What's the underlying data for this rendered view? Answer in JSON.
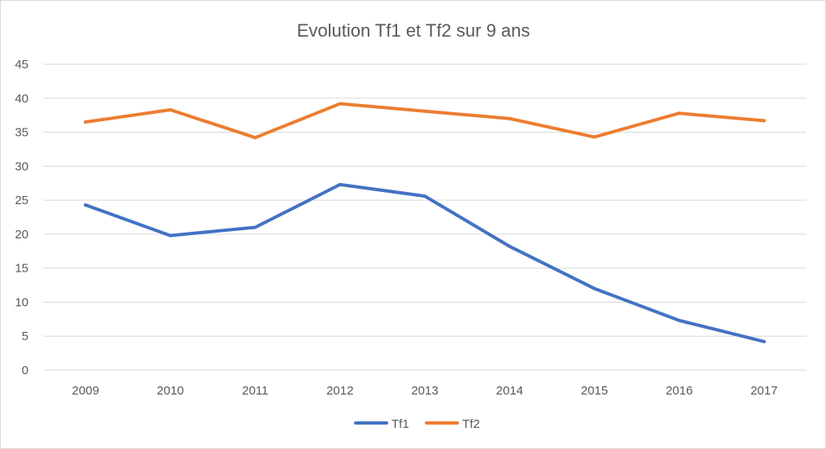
{
  "chart_data": {
    "type": "line",
    "title": "Evolution Tf1 et Tf2 sur 9 ans",
    "xlabel": "",
    "ylabel": "",
    "categories": [
      "2009",
      "2010",
      "2011",
      "2012",
      "2013",
      "2014",
      "2015",
      "2016",
      "2017"
    ],
    "ylim": [
      0,
      45
    ],
    "yticks": [
      "0",
      "5",
      "10",
      "15",
      "20",
      "25",
      "30",
      "35",
      "40",
      "45"
    ],
    "grid": true,
    "legend": "bottom",
    "series": [
      {
        "name": "Tf1",
        "color": "#4472C4",
        "values": [
          24.3,
          19.8,
          21.0,
          27.3,
          25.6,
          18.2,
          12.0,
          7.3,
          4.2
        ]
      },
      {
        "name": "Tf2",
        "color": "#ED7D31",
        "values": [
          36.5,
          38.3,
          34.2,
          39.2,
          38.1,
          37.0,
          34.3,
          37.8,
          36.7
        ]
      }
    ]
  }
}
